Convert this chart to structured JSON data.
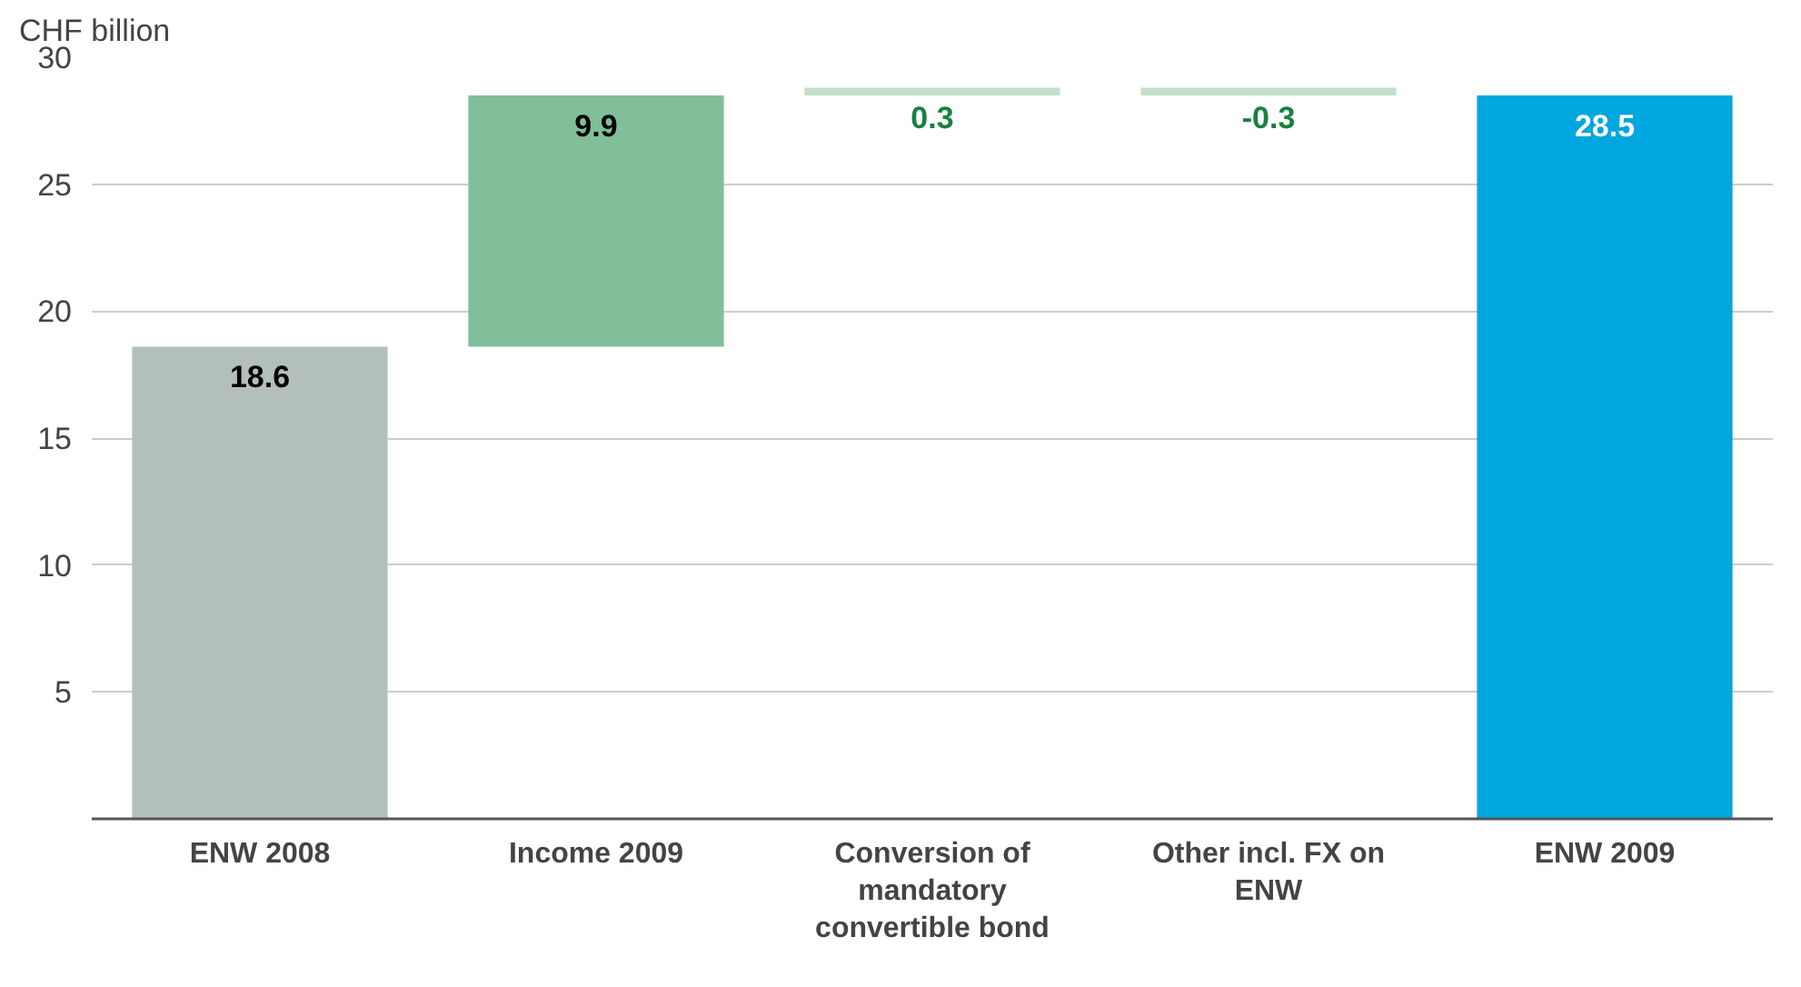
{
  "chart_data": {
    "type": "bar",
    "ylabel": "CHF billion",
    "categories": [
      "ENW 2008",
      "Income 2009",
      "Conversion of mandatory convertible bond",
      "Other incl. FX on ENW",
      "ENW 2009"
    ],
    "values": [
      18.6,
      9.9,
      0.3,
      -0.3,
      28.5
    ],
    "base": [
      0,
      18.6,
      28.5,
      28.8,
      0
    ],
    "colors": [
      "#b3bfbb",
      "#80bf9a",
      "#c2dfcc",
      "#c2dfcc",
      "#00a6de"
    ],
    "ylim": [
      0,
      30
    ],
    "yticks": [
      5,
      10,
      15,
      20,
      25,
      30
    ],
    "grid": "y",
    "data_labels": true
  }
}
